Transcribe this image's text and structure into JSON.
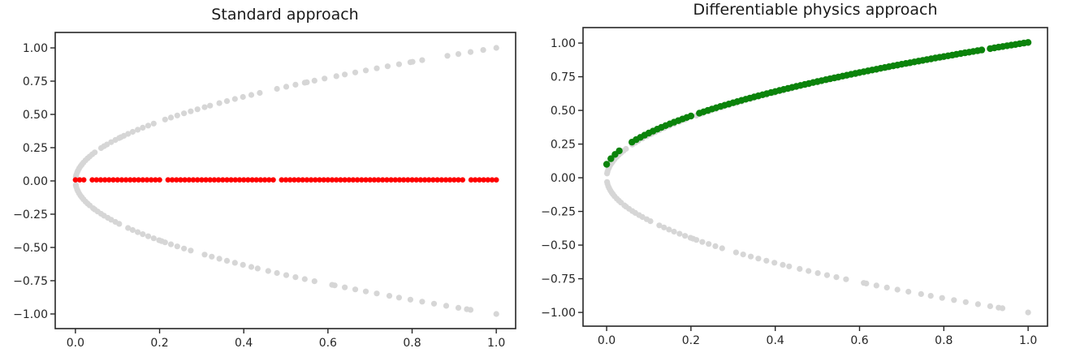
{
  "style": {
    "background": "#ffffff",
    "axis_color": "#262626",
    "tick_label_color": "#262626",
    "title_color": "#1a1a1a",
    "gray": "#d6d6d6",
    "red": "#ff0000",
    "green": "#0b830b"
  },
  "chart_data": [
    {
      "type": "scatter",
      "title": "Standard approach",
      "xlim": [
        -0.048,
        1.046
      ],
      "ylim": [
        -1.11,
        1.116
      ],
      "grid": false,
      "legend": "none",
      "xlabel": "",
      "ylabel": "",
      "xtick_values": [
        0,
        0.2,
        0.4,
        0.6,
        0.8,
        1.0
      ],
      "xtick_labels": [
        "0.0",
        "0.2",
        "0.4",
        "0.6",
        "0.8",
        "1.0"
      ],
      "ytick_values": [
        -1,
        -0.75,
        -0.5,
        -0.25,
        0,
        0.25,
        0.5,
        0.75,
        1
      ],
      "ytick_labels": [
        "−1.00",
        "−0.75",
        "−0.50",
        "−0.25",
        "0.00",
        "0.25",
        "0.50",
        "0.75",
        "1.00"
      ],
      "series": [
        {
          "name": "data-upper-branch",
          "desc": "ground-truth samples y = +sqrt(x)",
          "color": "#d6d6d6",
          "r": 3.6,
          "y_fn": "sqrt",
          "x": [
            0.001,
            0.002,
            0.004,
            0.006,
            0.009,
            0.012,
            0.015,
            0.019,
            0.024,
            0.029,
            0.034,
            0.04,
            0.046,
            0.061,
            0.068,
            0.075,
            0.085,
            0.095,
            0.104,
            0.108,
            0.115,
            0.125,
            0.136,
            0.148,
            0.16,
            0.173,
            0.186,
            0.213,
            0.227,
            0.242,
            0.258,
            0.274,
            0.29,
            0.307,
            0.32,
            0.342,
            0.36,
            0.379,
            0.398,
            0.418,
            0.438,
            0.479,
            0.501,
            0.523,
            0.545,
            0.55,
            0.568,
            0.592,
            0.62,
            0.64,
            0.665,
            0.69,
            0.716,
            0.742,
            0.769,
            0.796,
            0.801,
            0.824,
            0.884,
            0.91,
            0.939,
            0.969,
            1.0
          ]
        },
        {
          "name": "data-lower-branch",
          "desc": "ground-truth samples y = -sqrt(x)",
          "color": "#d6d6d6",
          "r": 3.6,
          "y_fn": "neg_sqrt",
          "x": [
            0.001,
            0.002,
            0.004,
            0.006,
            0.009,
            0.012,
            0.015,
            0.019,
            0.024,
            0.029,
            0.034,
            0.042,
            0.046,
            0.053,
            0.061,
            0.068,
            0.077,
            0.085,
            0.095,
            0.104,
            0.125,
            0.136,
            0.148,
            0.16,
            0.173,
            0.186,
            0.199,
            0.205,
            0.213,
            0.227,
            0.242,
            0.258,
            0.274,
            0.307,
            0.324,
            0.342,
            0.36,
            0.379,
            0.398,
            0.418,
            0.433,
            0.458,
            0.479,
            0.501,
            0.523,
            0.545,
            0.568,
            0.61,
            0.616,
            0.64,
            0.665,
            0.69,
            0.716,
            0.746,
            0.769,
            0.796,
            0.824,
            0.852,
            0.881,
            0.91,
            0.93,
            0.939,
            1.0
          ]
        },
        {
          "name": "nn-prediction-standard",
          "desc": "supervised NN prediction y ≈ 0",
          "color": "#ff0000",
          "r": 3.3,
          "y_fn": "const",
          "c": 0.008,
          "x": [
            0.0,
            0.01,
            0.02,
            0.04,
            0.05,
            0.06,
            0.07,
            0.08,
            0.09,
            0.1,
            0.11,
            0.12,
            0.13,
            0.14,
            0.15,
            0.16,
            0.17,
            0.18,
            0.19,
            0.2,
            0.22,
            0.23,
            0.24,
            0.25,
            0.26,
            0.27,
            0.28,
            0.29,
            0.3,
            0.31,
            0.32,
            0.33,
            0.34,
            0.35,
            0.36,
            0.37,
            0.38,
            0.39,
            0.4,
            0.41,
            0.42,
            0.43,
            0.44,
            0.45,
            0.46,
            0.47,
            0.49,
            0.5,
            0.51,
            0.52,
            0.53,
            0.54,
            0.55,
            0.56,
            0.57,
            0.58,
            0.59,
            0.6,
            0.61,
            0.62,
            0.63,
            0.64,
            0.65,
            0.66,
            0.67,
            0.68,
            0.69,
            0.7,
            0.71,
            0.72,
            0.73,
            0.74,
            0.75,
            0.76,
            0.77,
            0.78,
            0.79,
            0.8,
            0.81,
            0.82,
            0.83,
            0.84,
            0.85,
            0.86,
            0.87,
            0.88,
            0.89,
            0.9,
            0.91,
            0.92,
            0.94,
            0.95,
            0.96,
            0.97,
            0.98,
            0.99,
            1.0
          ]
        }
      ]
    },
    {
      "type": "scatter",
      "title": "Differentiable physics approach",
      "xlim": [
        -0.056,
        1.046
      ],
      "ylim": [
        -1.102,
        1.115
      ],
      "grid": false,
      "legend": "none",
      "xlabel": "",
      "ylabel": "",
      "xtick_values": [
        0,
        0.2,
        0.4,
        0.6,
        0.8,
        1.0
      ],
      "xtick_labels": [
        "0.0",
        "0.2",
        "0.4",
        "0.6",
        "0.8",
        "1.0"
      ],
      "ytick_values": [
        -1,
        -0.75,
        -0.5,
        -0.25,
        0,
        0.25,
        0.5,
        0.75,
        1
      ],
      "ytick_labels": [
        "−1.00",
        "−0.75",
        "−0.50",
        "−0.25",
        "0.00",
        "0.25",
        "0.50",
        "0.75",
        "1.00"
      ],
      "series": [
        {
          "name": "data-upper-branch",
          "desc": "ground-truth samples y = +sqrt(x)",
          "color": "#d6d6d6",
          "r": 3.6,
          "y_fn": "sqrt",
          "x": [
            0.001,
            0.002,
            0.004,
            0.006,
            0.009,
            0.012,
            0.015,
            0.019,
            0.024,
            0.029,
            0.034,
            0.04,
            0.046,
            0.061,
            0.068,
            0.075,
            0.085,
            0.095,
            0.104,
            0.108,
            0.115,
            0.125,
            0.136,
            0.148,
            0.16,
            0.173,
            0.186,
            0.213,
            0.227,
            0.242,
            0.258,
            0.274,
            0.29,
            0.307,
            0.32,
            0.342,
            0.36,
            0.379,
            0.398,
            0.418,
            0.438,
            0.479,
            0.501,
            0.523,
            0.545,
            0.55,
            0.568,
            0.592,
            0.62,
            0.64,
            0.665,
            0.69,
            0.716,
            0.742,
            0.769,
            0.796,
            0.801,
            0.824,
            0.884,
            0.91,
            0.939,
            0.969,
            1.0
          ]
        },
        {
          "name": "data-lower-branch",
          "desc": "ground-truth samples y = -sqrt(x)",
          "color": "#d6d6d6",
          "r": 3.6,
          "y_fn": "neg_sqrt",
          "x": [
            0.001,
            0.002,
            0.004,
            0.006,
            0.009,
            0.012,
            0.015,
            0.019,
            0.024,
            0.029,
            0.034,
            0.042,
            0.046,
            0.053,
            0.061,
            0.068,
            0.077,
            0.085,
            0.095,
            0.104,
            0.125,
            0.136,
            0.148,
            0.16,
            0.173,
            0.186,
            0.199,
            0.205,
            0.213,
            0.227,
            0.242,
            0.258,
            0.274,
            0.307,
            0.324,
            0.342,
            0.36,
            0.379,
            0.398,
            0.418,
            0.433,
            0.458,
            0.479,
            0.501,
            0.523,
            0.545,
            0.568,
            0.61,
            0.616,
            0.64,
            0.665,
            0.69,
            0.716,
            0.746,
            0.769,
            0.796,
            0.824,
            0.852,
            0.881,
            0.91,
            0.93,
            0.939,
            1.0
          ]
        },
        {
          "name": "nn-prediction-diffphys",
          "desc": "differentiable-physics NN prediction y ≈ sqrt(x + 0.01)",
          "color": "#0b830b",
          "r": 4.2,
          "y_fn": "sqrt_offset",
          "offset": 0.01,
          "x": [
            0.0,
            0.01,
            0.02,
            0.03,
            0.06,
            0.07,
            0.08,
            0.09,
            0.1,
            0.11,
            0.12,
            0.13,
            0.14,
            0.15,
            0.16,
            0.17,
            0.18,
            0.19,
            0.2,
            0.22,
            0.23,
            0.24,
            0.25,
            0.26,
            0.27,
            0.28,
            0.29,
            0.3,
            0.31,
            0.32,
            0.33,
            0.34,
            0.35,
            0.36,
            0.37,
            0.38,
            0.39,
            0.4,
            0.41,
            0.42,
            0.43,
            0.44,
            0.45,
            0.46,
            0.47,
            0.48,
            0.49,
            0.5,
            0.51,
            0.52,
            0.53,
            0.54,
            0.55,
            0.56,
            0.57,
            0.58,
            0.59,
            0.6,
            0.61,
            0.62,
            0.63,
            0.64,
            0.65,
            0.66,
            0.67,
            0.68,
            0.69,
            0.7,
            0.71,
            0.72,
            0.73,
            0.74,
            0.75,
            0.76,
            0.77,
            0.78,
            0.79,
            0.8,
            0.81,
            0.82,
            0.83,
            0.84,
            0.85,
            0.86,
            0.87,
            0.88,
            0.89,
            0.91,
            0.92,
            0.93,
            0.94,
            0.95,
            0.96,
            0.97,
            0.98,
            0.99,
            1.0
          ]
        }
      ]
    }
  ]
}
